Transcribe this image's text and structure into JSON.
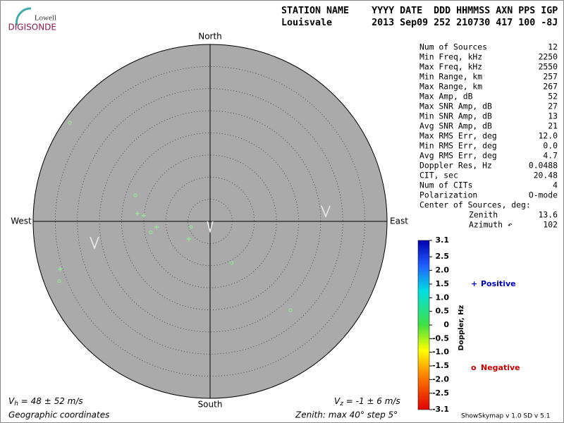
{
  "logo": {
    "top": "Lowell",
    "bottom": "DIGISONDE"
  },
  "header": {
    "line1": "STATION NAME    YYYY DATE  DDD HHMMSS AXN PPS IGP",
    "line2": "Louisvale       2013 Sep09 252 210730 417 100 -8J"
  },
  "stats": [
    [
      "Num of Sources",
      "12"
    ],
    [
      "Min Freq, kHz",
      "2250"
    ],
    [
      "Max Freq, kHz",
      "2550"
    ],
    [
      "Min Range, km",
      "257"
    ],
    [
      "Max Range, km",
      "267"
    ],
    [
      "Max Amp, dB",
      "52"
    ],
    [
      "Max SNR Amp, dB",
      "27"
    ],
    [
      "Min SNR Amp, dB",
      "13"
    ],
    [
      "Avg SNR Amp, dB",
      "21"
    ],
    [
      "Max RMS Err, deg",
      "12.0"
    ],
    [
      "Min RMS Err, deg",
      "0.0"
    ],
    [
      "Avg RMS Err, deg",
      "4.7"
    ],
    [
      "Doppler Res, Hz",
      "0.0488"
    ],
    [
      "CIT, sec",
      "20.48"
    ],
    [
      "Num of CITs",
      "4"
    ],
    [
      "Polarization",
      "O-mode"
    ]
  ],
  "center": {
    "title": "Center of Sources, deg:",
    "rows": [
      [
        "Zenith",
        "13.6"
      ],
      [
        "Azimuth ↶",
        "102"
      ]
    ]
  },
  "footer": {
    "vh_symbol": "V",
    "vh_sub": "h",
    "vh_text": " = 48 ± 52 m/s",
    "vz_symbol": "V",
    "vz_sub": "z",
    "vz_text": " = -1 ± 6 m/s",
    "coords": "Geographic coordinates",
    "zenith": "Zenith: max 40°  step 5°",
    "version": "ShowSkymap v 1.0  SD v 5.1"
  },
  "chart_data": {
    "type": "skymap",
    "directions": {
      "north": "North",
      "south": "South",
      "east": "East",
      "west": "West"
    },
    "rlim": [
      0,
      40
    ],
    "rticks": [
      5,
      10,
      15,
      20,
      25,
      30,
      35
    ],
    "marker_color": "#90ee90",
    "series": [
      {
        "name": "Positive",
        "color": "#0000cc",
        "marker": "plus",
        "x": [
          -16.4,
          -15.0,
          -12.1,
          -4.8,
          -33.9
        ],
        "y": [
          1.8,
          1.3,
          -1.3,
          -4.0,
          -10.8
        ]
      },
      {
        "name": "Negative",
        "color": "#cc0000",
        "marker": "circle",
        "x": [
          -31.7,
          -16.9,
          -13.4,
          -4.3,
          4.9,
          -34.1,
          18.2
        ],
        "y": [
          22.3,
          5.9,
          -2.5,
          -1.3,
          -9.4,
          -13.5,
          -20.1
        ]
      }
    ],
    "colorbar": {
      "label": "Doppler, Hz",
      "lim": [
        -3.1,
        3.1
      ],
      "ticks": [
        3.1,
        2.5,
        {
          "value": 2,
          "label": "2.0"
        },
        1.5,
        {
          "value": 1,
          "label": "1.0"
        },
        0.5,
        0,
        -0.5,
        {
          "value": -1,
          "label": "-1.0"
        },
        -1.5,
        {
          "value": -2,
          "label": "-2.0"
        },
        -2.5,
        -3.1
      ]
    }
  }
}
